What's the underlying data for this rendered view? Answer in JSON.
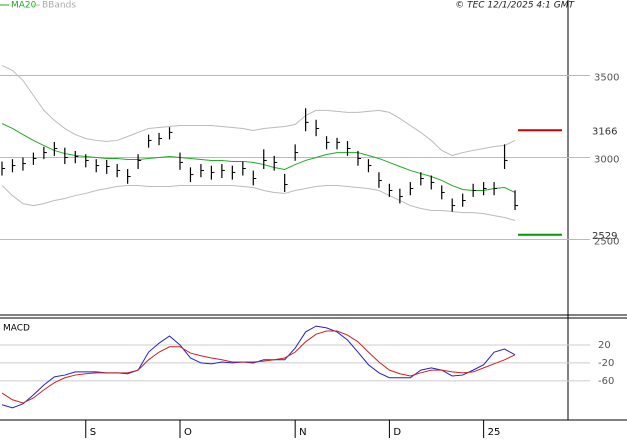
{
  "header": {
    "legend": [
      "MA20",
      "BBands"
    ],
    "credit": "© TEC 12/1/2025 4:1 GMT"
  },
  "chart_data": [
    {
      "type": "ohlc",
      "categories": [
        null,
        null,
        null,
        null,
        null,
        null,
        null,
        null,
        "S",
        null,
        null,
        null,
        null,
        null,
        null,
        null,
        null,
        "O",
        null,
        null,
        null,
        null,
        null,
        null,
        null,
        null,
        null,
        null,
        "N",
        null,
        null,
        null,
        null,
        null,
        null,
        null,
        null,
        "D",
        null,
        null,
        null,
        null,
        null,
        null,
        null,
        null,
        "25",
        null,
        null,
        null
      ],
      "values": [
        2933,
        2951,
        2963,
        2994,
        3030,
        3055,
        3000,
        3006,
        2982,
        2951,
        2945,
        2921,
        2884,
        2982,
        3104,
        3116,
        3153,
        2970,
        2896,
        2921,
        2909,
        2921,
        2909,
        2933,
        2872,
        2982,
        2970,
        2835,
        3030,
        3214,
        3177,
        3092,
        3092,
        3055,
        2994,
        2951,
        2860,
        2799,
        2762,
        2811,
        2872,
        2848,
        2787,
        2707,
        2738,
        2799,
        2811,
        2811,
        2982,
        2707
      ],
      "high": [
        2975,
        2990,
        3000,
        3030,
        3065,
        3095,
        3060,
        3040,
        3020,
        2990,
        2985,
        2960,
        2930,
        3020,
        3140,
        3150,
        3185,
        3030,
        2940,
        2960,
        2950,
        2960,
        2950,
        2975,
        2920,
        3050,
        3010,
        2900,
        3080,
        3300,
        3230,
        3130,
        3120,
        3100,
        3040,
        2990,
        2910,
        2840,
        2810,
        2850,
        2910,
        2890,
        2830,
        2750,
        2780,
        2840,
        2850,
        2850,
        3080,
        2800
      ],
      "low": [
        2890,
        2910,
        2920,
        2955,
        2990,
        3010,
        2960,
        2965,
        2940,
        2910,
        2900,
        2880,
        2840,
        2930,
        3060,
        3075,
        3110,
        2925,
        2850,
        2880,
        2865,
        2875,
        2865,
        2890,
        2830,
        2930,
        2920,
        2790,
        2980,
        3160,
        3130,
        3050,
        3050,
        3010,
        2950,
        2910,
        2815,
        2760,
        2720,
        2770,
        2830,
        2805,
        2745,
        2670,
        2700,
        2760,
        2770,
        2770,
        2930,
        2680
      ],
      "bar_color": "#000000",
      "series": [
        {
          "name": "MA20",
          "color": "#22aa22",
          "values": [
            3207,
            3177,
            3140,
            3104,
            3073,
            3043,
            3024,
            3012,
            3006,
            3000,
            2994,
            2994,
            2988,
            2988,
            2994,
            3000,
            3006,
            3000,
            2994,
            2988,
            2982,
            2982,
            2976,
            2976,
            2970,
            2957,
            2939,
            2927,
            2957,
            2982,
            3000,
            3018,
            3030,
            3030,
            3030,
            3012,
            2994,
            2970,
            2945,
            2921,
            2902,
            2884,
            2860,
            2829,
            2805,
            2799,
            2799,
            2811,
            2817,
            2787
          ]
        },
        {
          "name": "BBands",
          "color": "#bbbbbb",
          "values": [
            3561,
            3531,
            3470,
            3378,
            3287,
            3226,
            3177,
            3140,
            3116,
            3104,
            3098,
            3104,
            3128,
            3153,
            3177,
            3183,
            3189,
            3195,
            3195,
            3195,
            3195,
            3189,
            3183,
            3177,
            3165,
            3177,
            3183,
            3189,
            3201,
            3256,
            3287,
            3287,
            3281,
            3275,
            3275,
            3281,
            3287,
            3275,
            3238,
            3195,
            3153,
            3104,
            3043,
            3012,
            3030,
            3043,
            3055,
            3067,
            3073,
            3104
          ],
          "lower": [
            2829,
            2768,
            2719,
            2707,
            2719,
            2738,
            2750,
            2768,
            2781,
            2799,
            2811,
            2823,
            2829,
            2829,
            2823,
            2823,
            2823,
            2829,
            2829,
            2829,
            2829,
            2829,
            2829,
            2823,
            2817,
            2799,
            2787,
            2781,
            2799,
            2811,
            2823,
            2829,
            2829,
            2823,
            2817,
            2811,
            2799,
            2768,
            2738,
            2707,
            2689,
            2677,
            2677,
            2671,
            2664,
            2664,
            2658,
            2646,
            2634,
            2616
          ]
        }
      ],
      "reference_lines": [
        {
          "value": 3166,
          "color": "#cc0000"
        },
        {
          "value": 2529,
          "color": "#009900"
        }
      ],
      "ylim": [
        2040,
        3960
      ],
      "yticks": [
        2500,
        3000,
        3500
      ],
      "grid": true
    },
    {
      "type": "line",
      "title": "MACD",
      "series": [
        {
          "color": "#2222cc",
          "values": [
            -113,
            -120,
            -111,
            -91,
            -69,
            -51,
            -47,
            -40,
            -40,
            -40,
            -42,
            -42,
            -44,
            -36,
            4,
            24,
            40,
            20,
            -9,
            -20,
            -22,
            -18,
            -20,
            -18,
            -20,
            -13,
            -13,
            -13,
            13,
            49,
            62,
            58,
            49,
            31,
            4,
            -24,
            -42,
            -53,
            -53,
            -53,
            -36,
            -31,
            -36,
            -49,
            -47,
            -36,
            -24,
            4,
            11,
            -2
          ]
        },
        {
          "color": "#cc2222",
          "values": [
            -87,
            -102,
            -109,
            -98,
            -80,
            -64,
            -53,
            -47,
            -44,
            -42,
            -42,
            -42,
            -42,
            -36,
            -13,
            4,
            16,
            16,
            2,
            -4,
            -9,
            -13,
            -18,
            -18,
            -18,
            -16,
            -13,
            -9,
            4,
            27,
            44,
            51,
            51,
            42,
            27,
            4,
            -18,
            -36,
            -44,
            -49,
            -42,
            -36,
            -36,
            -40,
            -42,
            -40,
            -31,
            -22,
            -13,
            -2
          ]
        }
      ],
      "ylim": [
        -147,
        80
      ],
      "yticks": [
        20,
        -20,
        -60
      ],
      "grid": true
    }
  ]
}
